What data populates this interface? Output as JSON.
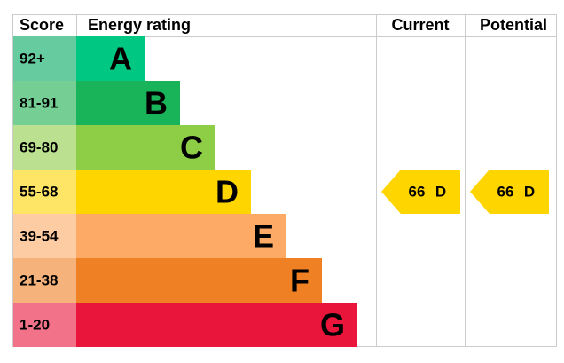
{
  "header": {
    "score": "Score",
    "rating": "Energy rating",
    "current": "Current",
    "potential": "Potential"
  },
  "rows": [
    {
      "score": "92+",
      "letter": "A",
      "color": "#00c781",
      "score_color": "#66cc9f"
    },
    {
      "score": "81-91",
      "letter": "B",
      "color": "#19b459",
      "score_color": "#75cf94"
    },
    {
      "score": "69-80",
      "letter": "C",
      "color": "#8dce46",
      "score_color": "#bbe190"
    },
    {
      "score": "55-68",
      "letter": "D",
      "color": "#ffd500",
      "score_color": "#ffe566"
    },
    {
      "score": "39-54",
      "letter": "E",
      "color": "#fcaa65",
      "score_color": "#fdcca3"
    },
    {
      "score": "21-38",
      "letter": "F",
      "color": "#ef8023",
      "score_color": "#f5b37b"
    },
    {
      "score": "1-20",
      "letter": "G",
      "color": "#e9153b",
      "score_color": "#f27289"
    }
  ],
  "current": {
    "value": 66,
    "letter": "D"
  },
  "potential": {
    "value": 66,
    "letter": "D"
  }
}
